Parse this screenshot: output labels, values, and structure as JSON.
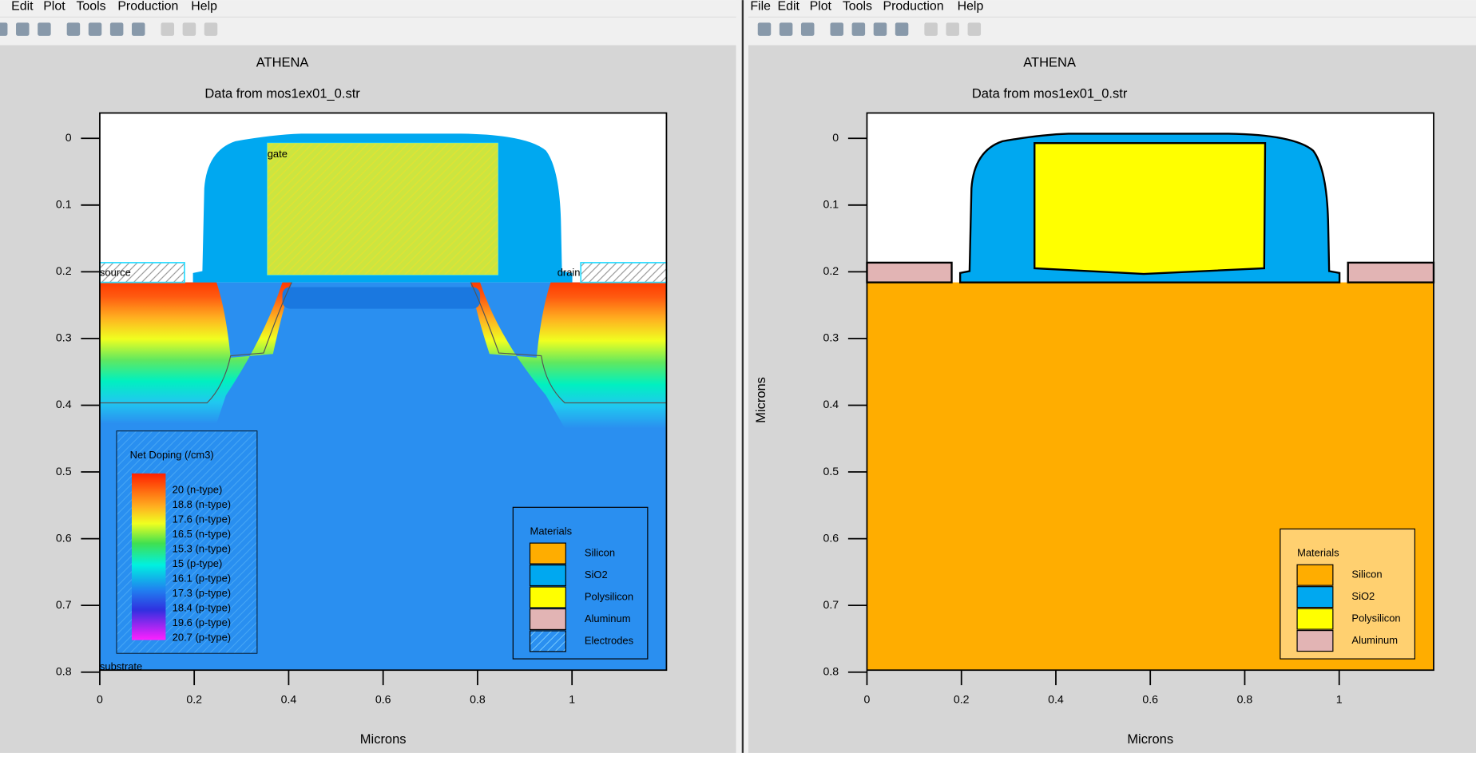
{
  "windows": [
    {
      "menu": [
        "Edit",
        "Plot",
        "Tools",
        "Production",
        "Help"
      ],
      "title": "ATHENA",
      "subtitle": "Data from mos1ex01_0.str",
      "x_label": "Microns",
      "xlim": [
        0,
        1.2
      ],
      "ylim": [
        -0.038,
        0.797
      ],
      "xticks": [
        0,
        0.2,
        0.4,
        0.6,
        0.8,
        1
      ],
      "yticks": [
        0,
        0.1,
        0.2,
        0.3,
        0.4,
        0.5,
        0.6,
        0.7,
        0.8
      ],
      "region_labels": [
        "gate",
        "source",
        "drain",
        "substrate"
      ],
      "doping_legend": {
        "title": "Net Doping (/cm3)",
        "entries": [
          "20 (n-type)",
          "18.8 (n-type)",
          "17.6 (n-type)",
          "16.5 (n-type)",
          "15.3 (n-type)",
          "15 (p-type)",
          "16.1 (p-type)",
          "17.3 (p-type)",
          "18.4 (p-type)",
          "19.6 (p-type)",
          "20.7 (p-type)"
        ]
      },
      "materials_legend": {
        "title": "Materials",
        "entries": [
          "Silicon",
          "SiO2",
          "Polysilicon",
          "Aluminum",
          "Electrodes"
        ]
      }
    },
    {
      "menu": [
        "File",
        "Edit",
        "Plot",
        "Tools",
        "Production",
        "Help"
      ],
      "title": "ATHENA",
      "subtitle": "Data from mos1ex01_0.str",
      "x_label": "Microns",
      "y_label": "Microns",
      "xlim": [
        0,
        1.2
      ],
      "ylim": [
        -0.038,
        0.797
      ],
      "xticks": [
        0,
        0.2,
        0.4,
        0.6,
        0.8,
        1
      ],
      "yticks": [
        0,
        0.1,
        0.2,
        0.3,
        0.4,
        0.5,
        0.6,
        0.7,
        0.8
      ],
      "materials_legend": {
        "title": "Materials",
        "entries": [
          "Silicon",
          "SiO2",
          "Polysilicon",
          "Aluminum"
        ]
      }
    }
  ]
}
